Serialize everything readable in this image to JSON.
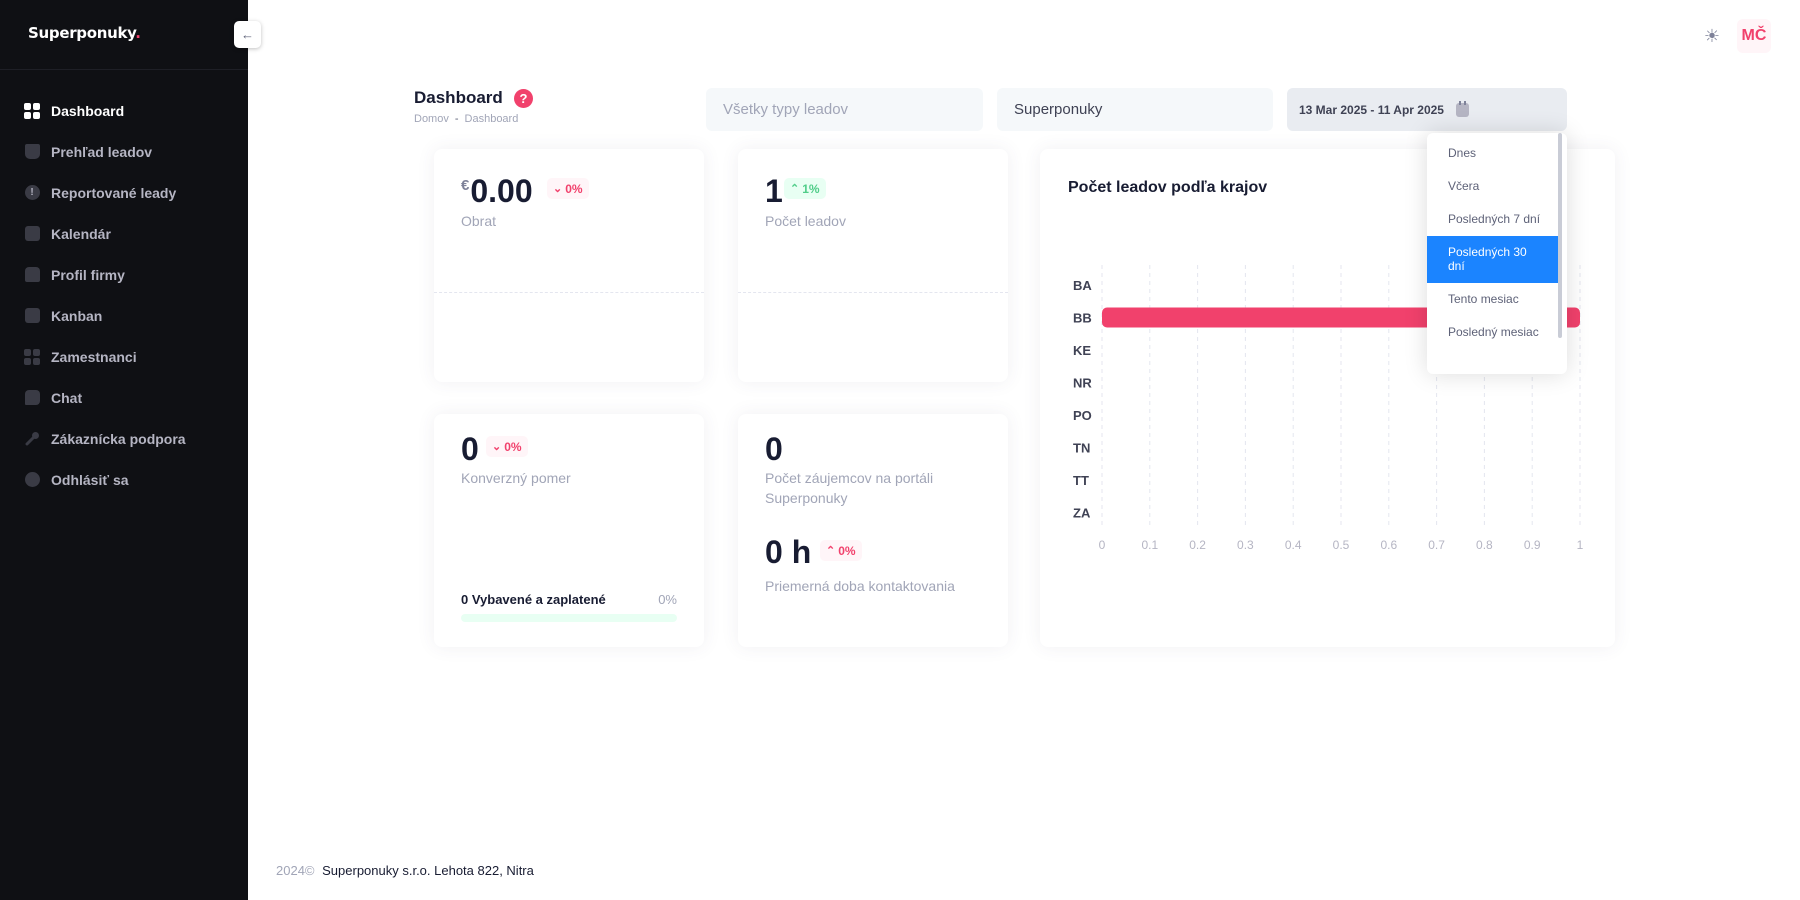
{
  "brand": {
    "name": "Superponuky",
    "dot": "."
  },
  "sidebar": {
    "collapse_icon": "←",
    "items": [
      {
        "label": "Dashboard",
        "icon": "grid-icon"
      },
      {
        "label": "Prehľad leadov",
        "icon": "basket-icon"
      },
      {
        "label": "Reportované leady",
        "icon": "alert-icon"
      },
      {
        "label": "Kalendár",
        "icon": "calendar-icon"
      },
      {
        "label": "Profil firmy",
        "icon": "profile-icon"
      },
      {
        "label": "Kanban",
        "icon": "kanban-icon"
      },
      {
        "label": "Zamestnanci",
        "icon": "team-icon"
      },
      {
        "label": "Chat",
        "icon": "chat-icon"
      },
      {
        "label": "Zákaznícka podpora",
        "icon": "wrench-icon"
      },
      {
        "label": "Odhlásiť sa",
        "icon": "logout-icon"
      }
    ]
  },
  "header": {
    "avatar_initials": "MČ",
    "theme_icon": "☀"
  },
  "page": {
    "title": "Dashboard",
    "help": "?",
    "breadcrumb": [
      "Domov",
      "Dashboard"
    ],
    "breadcrumb_sep": "-"
  },
  "filters": {
    "lead_type_placeholder": "Všetky typy leadov",
    "brand": "Superponuky",
    "date_range": "13 Mar 2025 - 11 Apr 2025"
  },
  "date_dropdown": {
    "options": [
      "Dnes",
      "Včera",
      "Posledných 7 dní",
      "Posledných 30 dní",
      "Tento mesiac",
      "Posledný mesiac"
    ],
    "selected": "Posledných 30 dní"
  },
  "cards": {
    "obrat": {
      "currency": "€",
      "value": "0.00",
      "change": "0%",
      "label": "Obrat"
    },
    "pocet_leadov": {
      "value": "1",
      "change": "1%",
      "label": "Počet leadov"
    },
    "konverzny": {
      "value": "0",
      "change": "0%",
      "label": "Konverzný pomer",
      "progress_label": "0 Vybavené a zaplatené",
      "progress_pct": "0%",
      "progress": 0
    },
    "zaujemcovia": {
      "value": "0",
      "label": "Počet záujemcov na portáli Superponuky",
      "time_value": "0 h",
      "time_change": "0%",
      "time_label": "Priemerná doba kontaktovania"
    }
  },
  "chart_data": {
    "type": "bar",
    "orientation": "horizontal",
    "title": "Počet leadov podľa krajov",
    "categories": [
      "BA",
      "BB",
      "KE",
      "NR",
      "PO",
      "TN",
      "TT",
      "ZA"
    ],
    "values": [
      0,
      1,
      0,
      0,
      0,
      0,
      0,
      0
    ],
    "xlim": [
      0,
      1
    ],
    "xticks": [
      "0",
      "0.1",
      "0.2",
      "0.3",
      "0.4",
      "0.5",
      "0.6",
      "0.7",
      "0.8",
      "0.9",
      "1"
    ],
    "bar_color": "#f1416c",
    "grid": true
  },
  "footer": {
    "year": "2024©",
    "text": "Superponuky s.r.o. Lehota 822, Nitra"
  }
}
